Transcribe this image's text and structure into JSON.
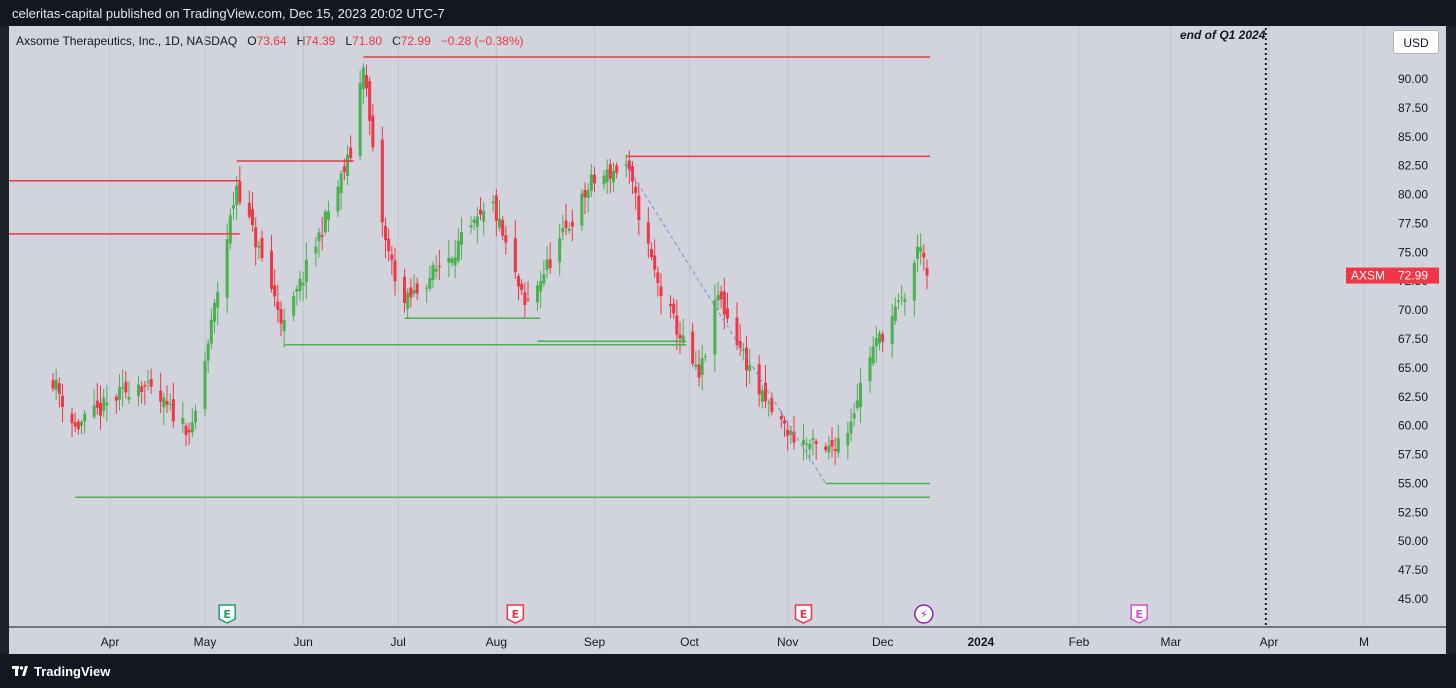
{
  "header": {
    "publish_line": "celeritas-capital published on TradingView.com, Dec 15, 2023 20:02 UTC-7"
  },
  "footer": {
    "brand": "TradingView"
  },
  "legend": {
    "symbol": "Axsome Therapeutics, Inc., 1D, NASDAQ",
    "o_label": "O",
    "o": "73.64",
    "h_label": "H",
    "h": "74.39",
    "l_label": "L",
    "l": "71.80",
    "c_label": "C",
    "c": "72.99",
    "change": "−0.28 (−0.38%)"
  },
  "currency_button": "USD",
  "annotation": "end of Q1 2024",
  "colors": {
    "up": "#4caf50",
    "down": "#f23645",
    "background": "#d1d4dc",
    "frame": "#131722"
  },
  "chart_data": {
    "type": "candlestick",
    "ylim": [
      43,
      93.5
    ],
    "price_axis_labels": [
      "90.00",
      "87.50",
      "85.00",
      "82.50",
      "80.00",
      "77.50",
      "75.00",
      "72.50",
      "70.00",
      "67.50",
      "65.00",
      "62.50",
      "60.00",
      "57.50",
      "55.00",
      "52.50",
      "50.00",
      "47.50",
      "45.00"
    ],
    "time_axis": [
      {
        "label": "Apr",
        "date": "2023-04-01"
      },
      {
        "label": "May",
        "date": "2023-05-01"
      },
      {
        "label": "Jun",
        "date": "2023-06-01"
      },
      {
        "label": "Jul",
        "date": "2023-07-01"
      },
      {
        "label": "Aug",
        "date": "2023-08-01"
      },
      {
        "label": "Sep",
        "date": "2023-09-01"
      },
      {
        "label": "Oct",
        "date": "2023-10-01"
      },
      {
        "label": "Nov",
        "date": "2023-11-01"
      },
      {
        "label": "Dec",
        "date": "2023-12-01"
      },
      {
        "label": "2024",
        "date": "2024-01-01"
      },
      {
        "label": "Feb",
        "date": "2024-02-01"
      },
      {
        "label": "Mar",
        "date": "2024-03-01"
      },
      {
        "label": "Apr",
        "date": "2024-04-01"
      },
      {
        "label": "M",
        "date": "2024-05-01"
      }
    ],
    "last_price_label": {
      "symbol": "AXSM",
      "value": "72.99"
    },
    "key_prices": [
      {
        "date": "2023-03-14",
        "close": 64.0
      },
      {
        "date": "2023-03-21",
        "close": 59.8
      },
      {
        "date": "2023-04-10",
        "close": 63.8
      },
      {
        "date": "2023-04-27",
        "close": 59.5
      },
      {
        "date": "2023-05-11",
        "close": 80.9
      },
      {
        "date": "2023-05-26",
        "close": 68.6
      },
      {
        "date": "2023-06-16",
        "close": 83.5
      },
      {
        "date": "2023-06-20",
        "close": 91.6
      },
      {
        "date": "2023-06-23",
        "close": 83.5
      },
      {
        "date": "2023-06-27",
        "close": 75.8
      },
      {
        "date": "2023-07-03",
        "close": 70.5
      },
      {
        "date": "2023-07-31",
        "close": 79.0
      },
      {
        "date": "2023-08-10",
        "close": 70.2
      },
      {
        "date": "2023-08-31",
        "close": 81.0
      },
      {
        "date": "2023-09-11",
        "close": 82.6
      },
      {
        "date": "2023-09-21",
        "close": 72.2
      },
      {
        "date": "2023-10-04",
        "close": 64.0
      },
      {
        "date": "2023-10-10",
        "close": 71.3
      },
      {
        "date": "2023-10-24",
        "close": 62.3
      },
      {
        "date": "2023-11-02",
        "close": 59.2
      },
      {
        "date": "2023-11-13",
        "close": 57.6
      },
      {
        "date": "2023-11-20",
        "close": 59.8
      },
      {
        "date": "2023-11-27",
        "close": 66.2
      },
      {
        "date": "2023-12-08",
        "close": 71.2
      },
      {
        "date": "2023-12-13",
        "close": 76.0
      },
      {
        "date": "2023-12-15",
        "close": 72.99
      }
    ],
    "horizontal_levels": [
      {
        "type": "resistance",
        "price": 91.9,
        "from": "2023-06-20",
        "to": "2023-12-15"
      },
      {
        "type": "resistance",
        "price": 83.3,
        "from": "2023-09-11",
        "to": "2023-12-15"
      },
      {
        "type": "resistance",
        "price": 81.2,
        "from": "2023-03-01",
        "to": "2023-05-11"
      },
      {
        "type": "resistance",
        "price": 82.9,
        "from": "2023-05-11",
        "to": "2023-06-16"
      },
      {
        "type": "resistance",
        "price": 76.6,
        "from": "2023-03-01",
        "to": "2023-05-11"
      },
      {
        "type": "support",
        "price": 69.3,
        "from": "2023-07-03",
        "to": "2023-08-14"
      },
      {
        "type": "support",
        "price": 67.3,
        "from": "2023-08-14",
        "to": "2023-09-29"
      },
      {
        "type": "support",
        "price": 67.0,
        "from": "2023-05-26",
        "to": "2023-09-29"
      },
      {
        "type": "support",
        "price": 55.0,
        "from": "2023-11-13",
        "to": "2023-12-15"
      },
      {
        "type": "support",
        "price": 53.8,
        "from": "2023-03-21",
        "to": "2023-12-15"
      }
    ],
    "trendline": {
      "from": {
        "date": "2023-09-11",
        "price": 82.6
      },
      "to": {
        "date": "2023-11-13",
        "price": 55.0
      }
    },
    "event_markers": [
      {
        "date": "2023-05-08",
        "label": "E",
        "kind": "earnings-reported"
      },
      {
        "date": "2023-08-07",
        "label": "E",
        "kind": "earnings-miss"
      },
      {
        "date": "2023-11-06",
        "label": "E",
        "kind": "earnings-miss"
      },
      {
        "date": "2023-12-14",
        "label": "⚡",
        "kind": "dividend-or-split"
      },
      {
        "date": "2024-02-20",
        "label": "E",
        "kind": "earnings-upcoming"
      }
    ],
    "vertical_marker_date": "2024-03-31"
  }
}
